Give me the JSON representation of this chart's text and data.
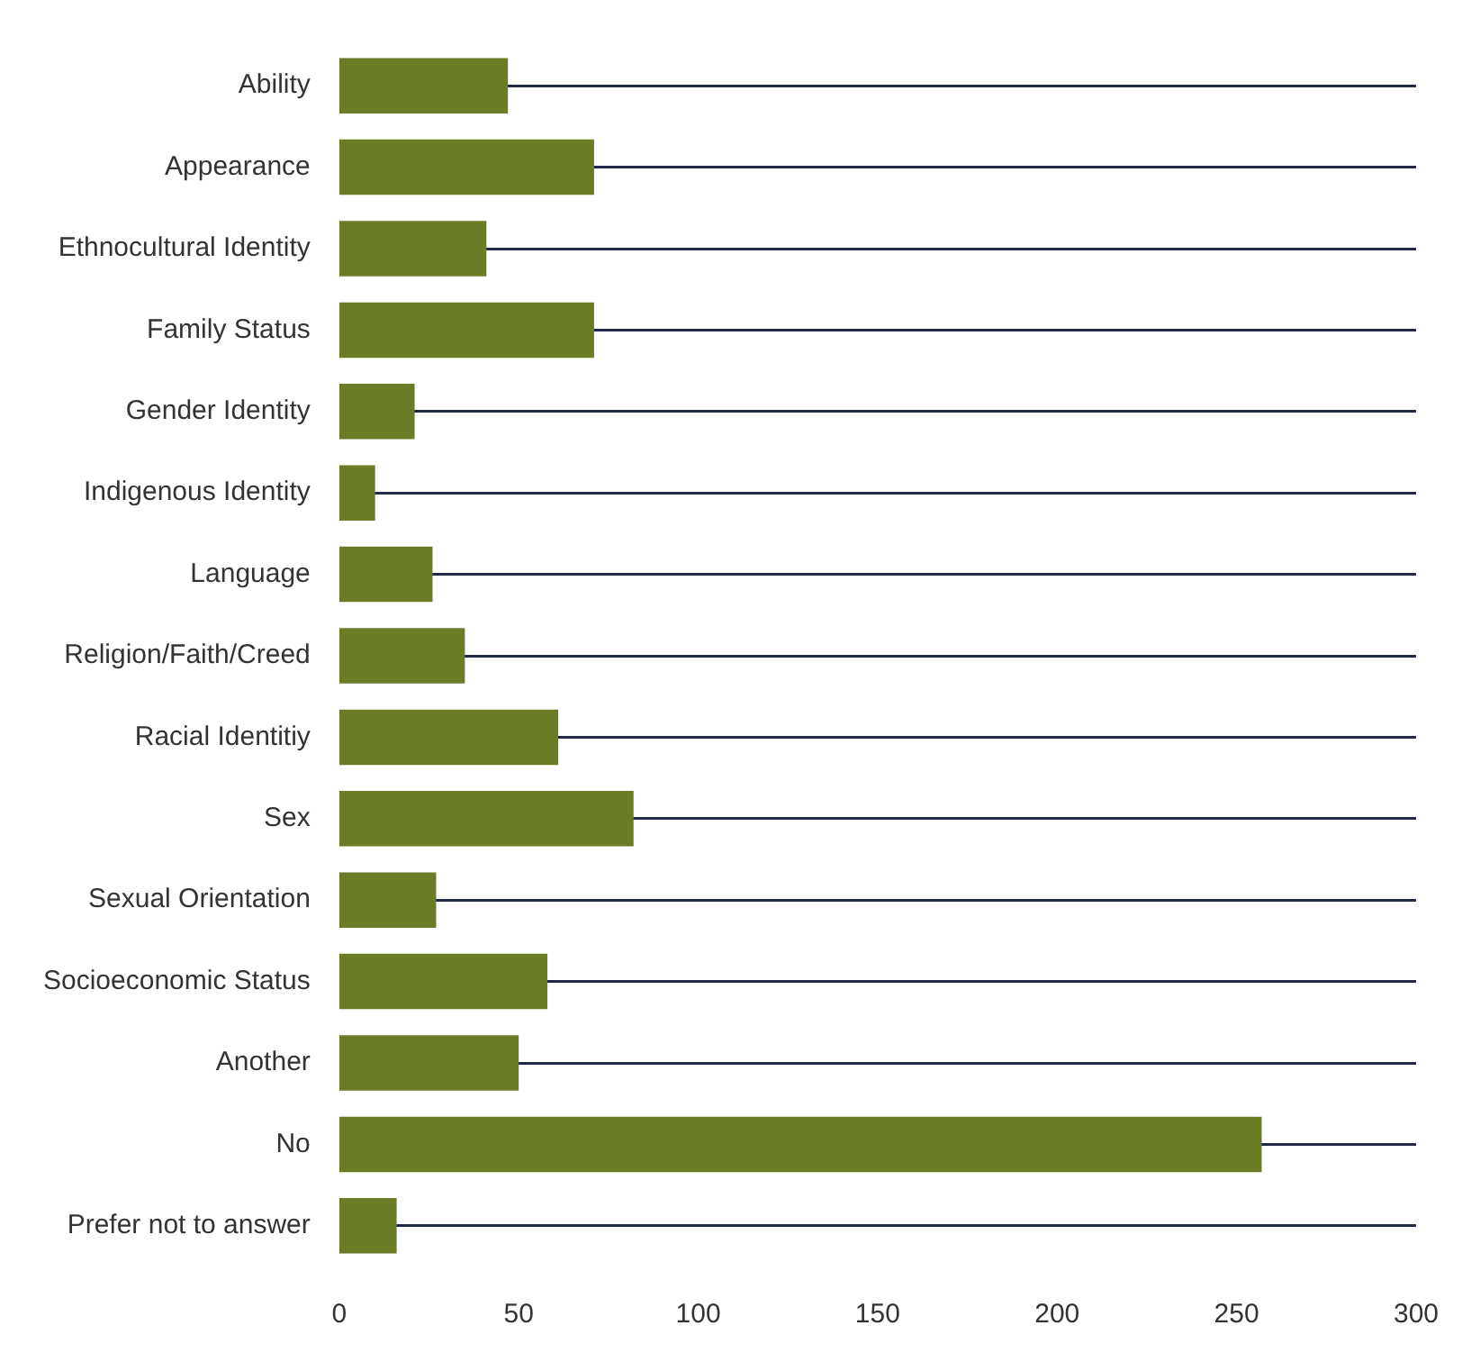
{
  "chart_data": {
    "type": "bar",
    "orientation": "horizontal",
    "categories": [
      "Ability",
      "Appearance",
      "Ethnocultural Identity",
      "Family Status",
      "Gender Identity",
      "Indigenous Identity",
      "Language",
      "Religion/Faith/Creed",
      "Racial Identitiy",
      "Sex",
      "Sexual Orientation",
      "Socioeconomic Status",
      "Another",
      "No",
      "Prefer not to answer"
    ],
    "values": [
      47,
      71,
      41,
      71,
      21,
      10,
      26,
      35,
      61,
      82,
      27,
      58,
      50,
      257,
      16
    ],
    "color": "#6b7d24",
    "xlim": [
      0,
      300
    ],
    "xticks": [
      0,
      50,
      100,
      150,
      200,
      250,
      300
    ],
    "grid": "y",
    "legend": false
  }
}
